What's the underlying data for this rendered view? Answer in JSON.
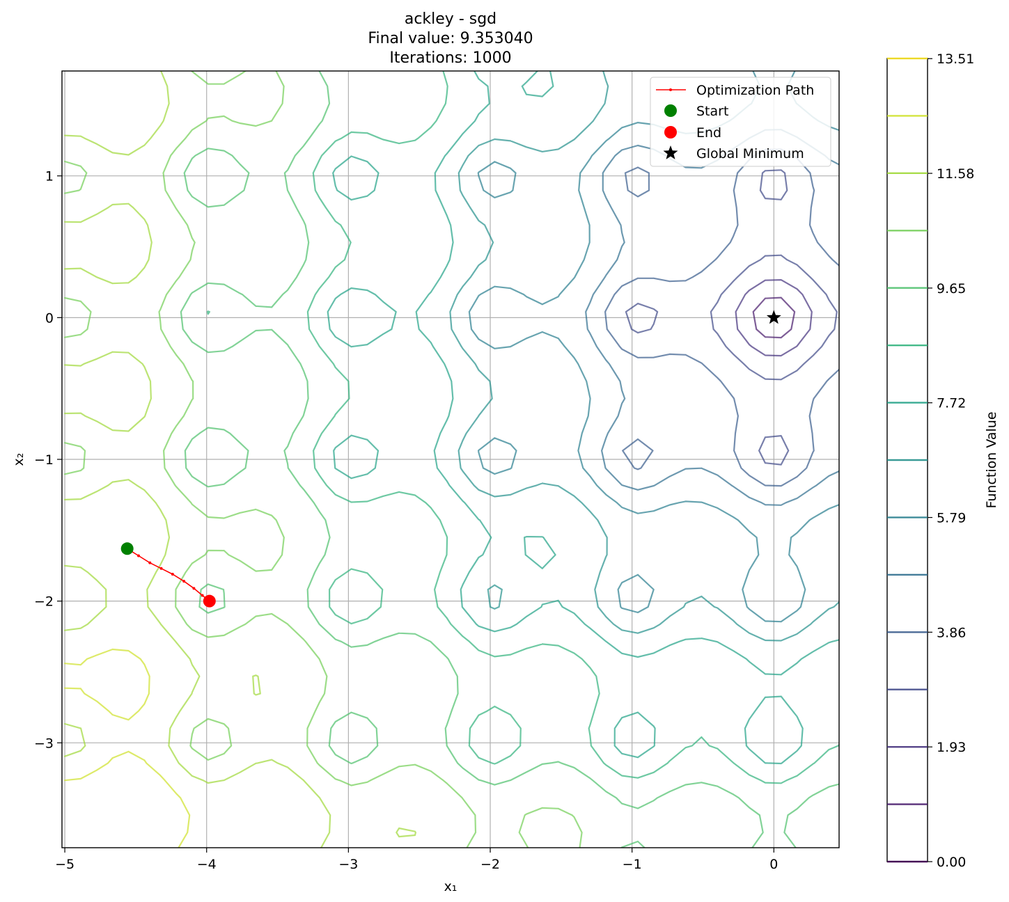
{
  "chart_data": {
    "type": "contour",
    "title_lines": [
      "ackley - sgd",
      "Final value: 9.353040",
      "Iterations: 1000"
    ],
    "xlabel": "x₁",
    "ylabel": "x₂",
    "xlim": [
      -5.02,
      0.46
    ],
    "ylim": [
      -3.74,
      1.74
    ],
    "x_ticks": [
      -5,
      -4,
      -3,
      -2,
      -1,
      0
    ],
    "x_tick_labels": [
      "−5",
      "−4",
      "−3",
      "−2",
      "−1",
      "0"
    ],
    "y_ticks": [
      -3,
      -2,
      -1,
      0,
      1
    ],
    "y_tick_labels": [
      "−3",
      "−2",
      "−1",
      "0",
      "1"
    ],
    "grid": true,
    "function": "ackley",
    "contour_levels": [
      0.0,
      0.9652,
      1.9304,
      2.8956,
      3.8608,
      4.826,
      5.7912,
      6.7564,
      7.7216,
      8.6868,
      9.652,
      10.6172,
      11.5824,
      12.5476,
      13.5128
    ],
    "colormap": "viridis",
    "contour_alpha": 0.7,
    "series": [
      {
        "name": "Optimization Path",
        "color": "#ff0000",
        "x": [
          -4.56,
          -4.48,
          -4.4,
          -4.32,
          -4.24,
          -4.16,
          -4.09,
          -4.03,
          -3.98
        ],
        "y": [
          -1.63,
          -1.68,
          -1.73,
          -1.77,
          -1.81,
          -1.86,
          -1.91,
          -1.96,
          -2.0
        ]
      }
    ],
    "points": {
      "start": {
        "name": "Start",
        "x": -4.56,
        "y": -1.63,
        "color": "#008000"
      },
      "end": {
        "name": "End",
        "x": -3.98,
        "y": -2.0,
        "color": "#ff0000"
      },
      "global_minimum": {
        "name": "Global Minimum",
        "x": 0,
        "y": 0,
        "color": "#000000"
      }
    },
    "legend": {
      "placement": "top-right",
      "entries": [
        "Optimization Path",
        "Start",
        "End",
        "Global Minimum"
      ]
    },
    "colorbar": {
      "label": "Function Value",
      "range": [
        0,
        13.51
      ],
      "tick_values": [
        0.0,
        1.93,
        3.86,
        5.79,
        7.72,
        9.65,
        11.58,
        13.51
      ],
      "tick_labels": [
        "0.00",
        "1.93",
        "3.86",
        "5.79",
        "7.72",
        "9.65",
        "11.58",
        "13.51"
      ]
    }
  }
}
